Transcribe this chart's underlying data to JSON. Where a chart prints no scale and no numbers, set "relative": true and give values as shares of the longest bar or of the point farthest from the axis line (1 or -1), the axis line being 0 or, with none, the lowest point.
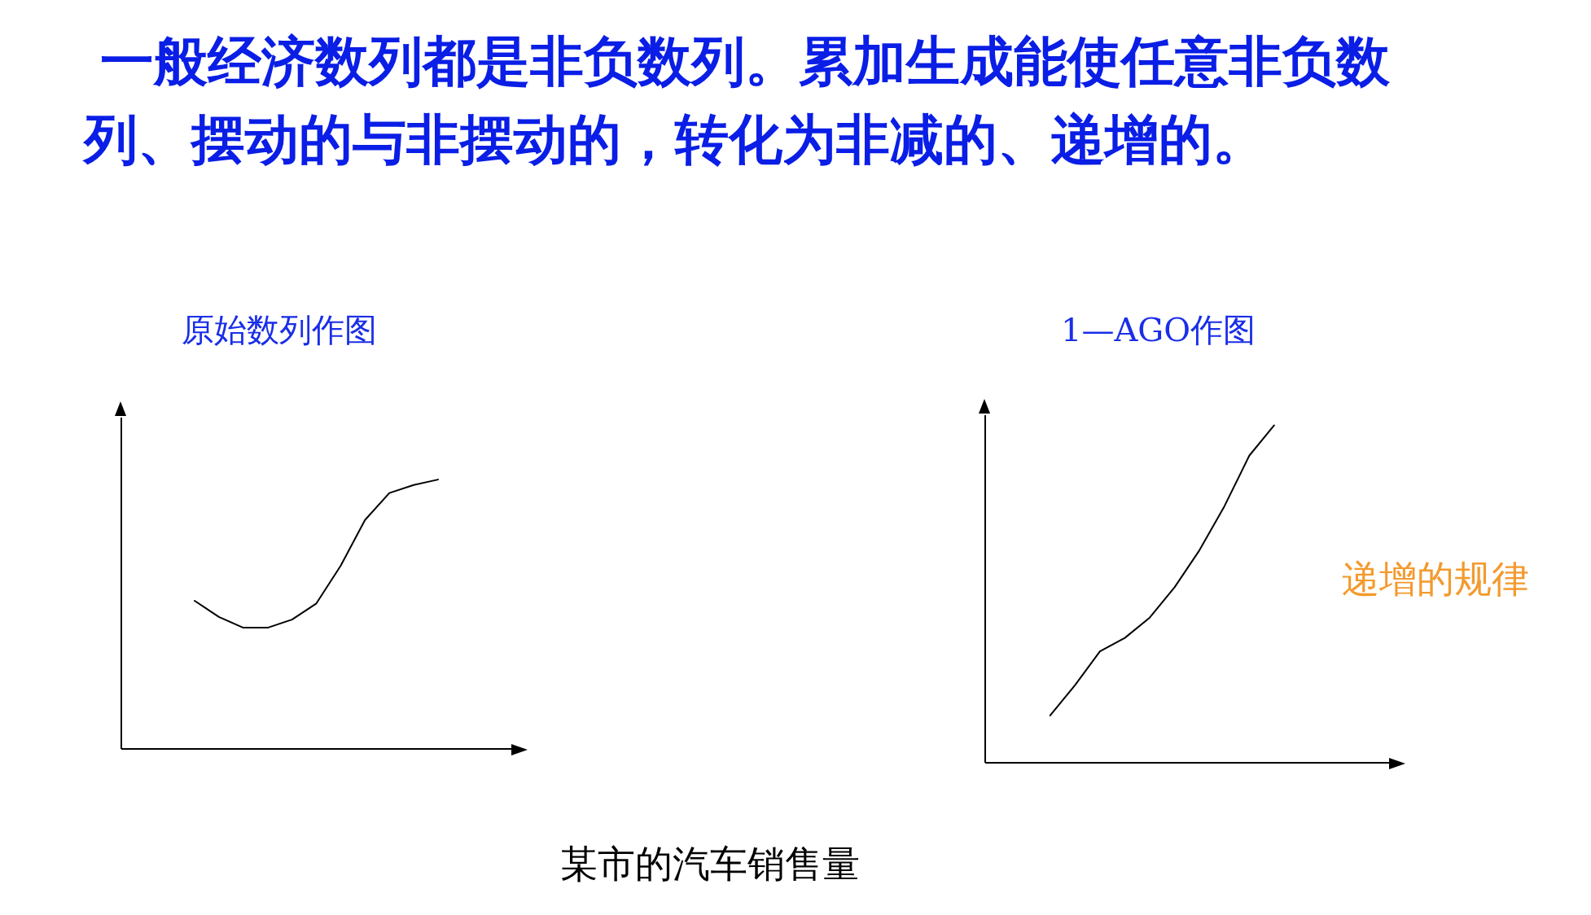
{
  "chart_data": [
    {
      "type": "line",
      "title": "原始数列作图",
      "relative": true,
      "marker": "none",
      "annotations": [
        "一般经济数列都是非负数列。累加生成能使任意非负数列、摆动的与非摆动的，转化为非减的、递增的。",
        "某市的汽车销售量"
      ],
      "categories": [
        null,
        null,
        null,
        null,
        null,
        null,
        null,
        null,
        null,
        null,
        null
      ],
      "series": [
        {
          "color": "#000000",
          "values": [
            0.55,
            0.49,
            0.45,
            0.45,
            0.48,
            0.54,
            0.68,
            0.85,
            0.95,
            0.98,
            1
          ]
        }
      ]
    },
    {
      "type": "line",
      "title": "1—AGO作图",
      "relative": true,
      "marker": "none",
      "annotations": [
        "递增的规律"
      ],
      "categories": [
        null,
        null,
        null,
        null,
        null,
        null,
        null,
        null,
        null,
        null
      ],
      "series": [
        {
          "color": "#000000",
          "values": [
            0.14,
            0.23,
            0.33,
            0.37,
            0.43,
            0.52,
            0.63,
            0.76,
            0.91,
            1
          ]
        }
      ]
    }
  ]
}
